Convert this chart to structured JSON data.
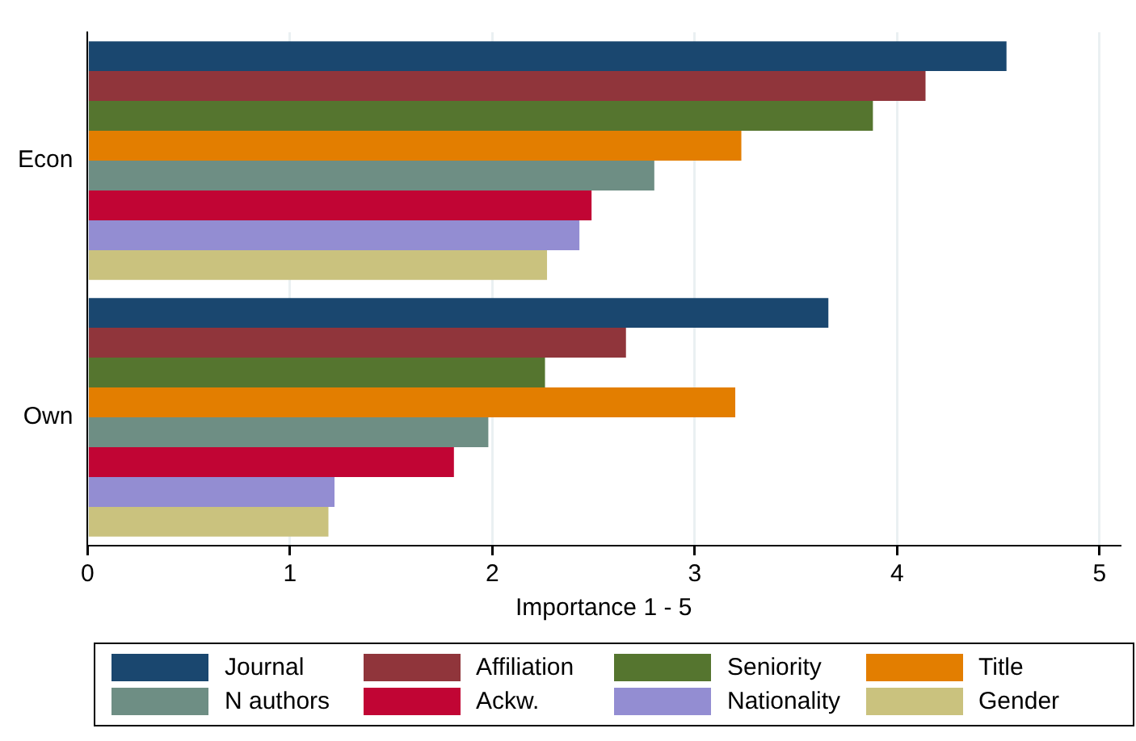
{
  "chart_data": {
    "type": "bar",
    "orientation": "horizontal",
    "xlabel": "Importance 1 - 5",
    "categories": [
      "Econ",
      "Own"
    ],
    "xlim": [
      0,
      5.1
    ],
    "xticks": [
      0,
      1,
      2,
      3,
      4,
      5
    ],
    "grid": "x",
    "legend": "bottom",
    "series": [
      {
        "name": "Journal",
        "color": "#1a476f",
        "values": [
          4.54,
          3.66
        ]
      },
      {
        "name": "Affiliation",
        "color": "#90353b",
        "values": [
          4.14,
          2.66
        ]
      },
      {
        "name": "Seniority",
        "color": "#55752f",
        "values": [
          3.88,
          2.26
        ]
      },
      {
        "name": "Title",
        "color": "#e37e00",
        "values": [
          3.23,
          3.2
        ]
      },
      {
        "name": "N authors",
        "color": "#6e8e84",
        "values": [
          2.8,
          1.98
        ]
      },
      {
        "name": "Ackw.",
        "color": "#c10534",
        "values": [
          2.49,
          1.81
        ]
      },
      {
        "name": "Nationality",
        "color": "#938dd2",
        "values": [
          2.43,
          1.22
        ]
      },
      {
        "name": "Gender",
        "color": "#cac27e",
        "values": [
          2.27,
          1.19
        ]
      }
    ]
  }
}
